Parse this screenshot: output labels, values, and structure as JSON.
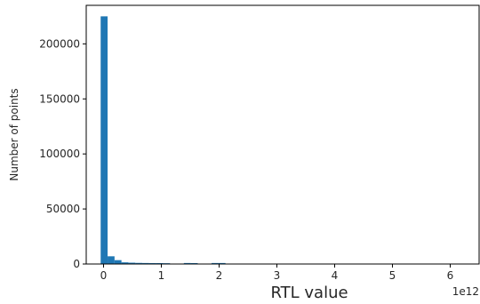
{
  "chart_data": {
    "type": "bar",
    "xlabel": "RTL value",
    "ylabel": "Number of points",
    "x_offset_label": "1e12",
    "xlim": [
      -0.3,
      6.5
    ],
    "ylim": [
      0,
      235000
    ],
    "x_ticks": [
      {
        "value": 0,
        "label": "0"
      },
      {
        "value": 1,
        "label": "1"
      },
      {
        "value": 2,
        "label": "2"
      },
      {
        "value": 3,
        "label": "3"
      },
      {
        "value": 4,
        "label": "4"
      },
      {
        "value": 5,
        "label": "5"
      },
      {
        "value": 6,
        "label": "6"
      }
    ],
    "y_ticks": [
      {
        "value": 0,
        "label": "0"
      },
      {
        "value": 50000,
        "label": "50000"
      },
      {
        "value": 100000,
        "label": "100000"
      },
      {
        "value": 150000,
        "label": "150000"
      },
      {
        "value": 200000,
        "label": "200000"
      }
    ],
    "bin_edges": [
      -0.05,
      0.07,
      0.19,
      0.31,
      0.43,
      0.55,
      0.67,
      0.79,
      0.91,
      1.03,
      1.15,
      1.27,
      1.39,
      1.51,
      1.63,
      1.75,
      1.87,
      1.99,
      2.11,
      2.23,
      2.35,
      2.47,
      2.59,
      2.71,
      2.83,
      2.95,
      3.07,
      3.19,
      3.31,
      3.43,
      3.55,
      3.67,
      3.79,
      3.91,
      4.03,
      4.15,
      4.27,
      4.39,
      4.51,
      4.63,
      4.75,
      4.87,
      4.99,
      5.11,
      5.23,
      5.35,
      5.47,
      5.59,
      5.71,
      5.83,
      5.95,
      6.07,
      6.19,
      6.31
    ],
    "counts": [
      225000,
      7000,
      3500,
      1500,
      1200,
      1000,
      900,
      800,
      800,
      700,
      300,
      200,
      900,
      800,
      400,
      200,
      900,
      900,
      300,
      100,
      80,
      60,
      50,
      40,
      40,
      30,
      30,
      20,
      20,
      20,
      15,
      15,
      15,
      10,
      10,
      10,
      10,
      10,
      10,
      10,
      10,
      5,
      5,
      5,
      5,
      5,
      5,
      5,
      5,
      5,
      5,
      5,
      5
    ],
    "bar_color": "#1f77b4",
    "grid": false,
    "legend": "none"
  }
}
